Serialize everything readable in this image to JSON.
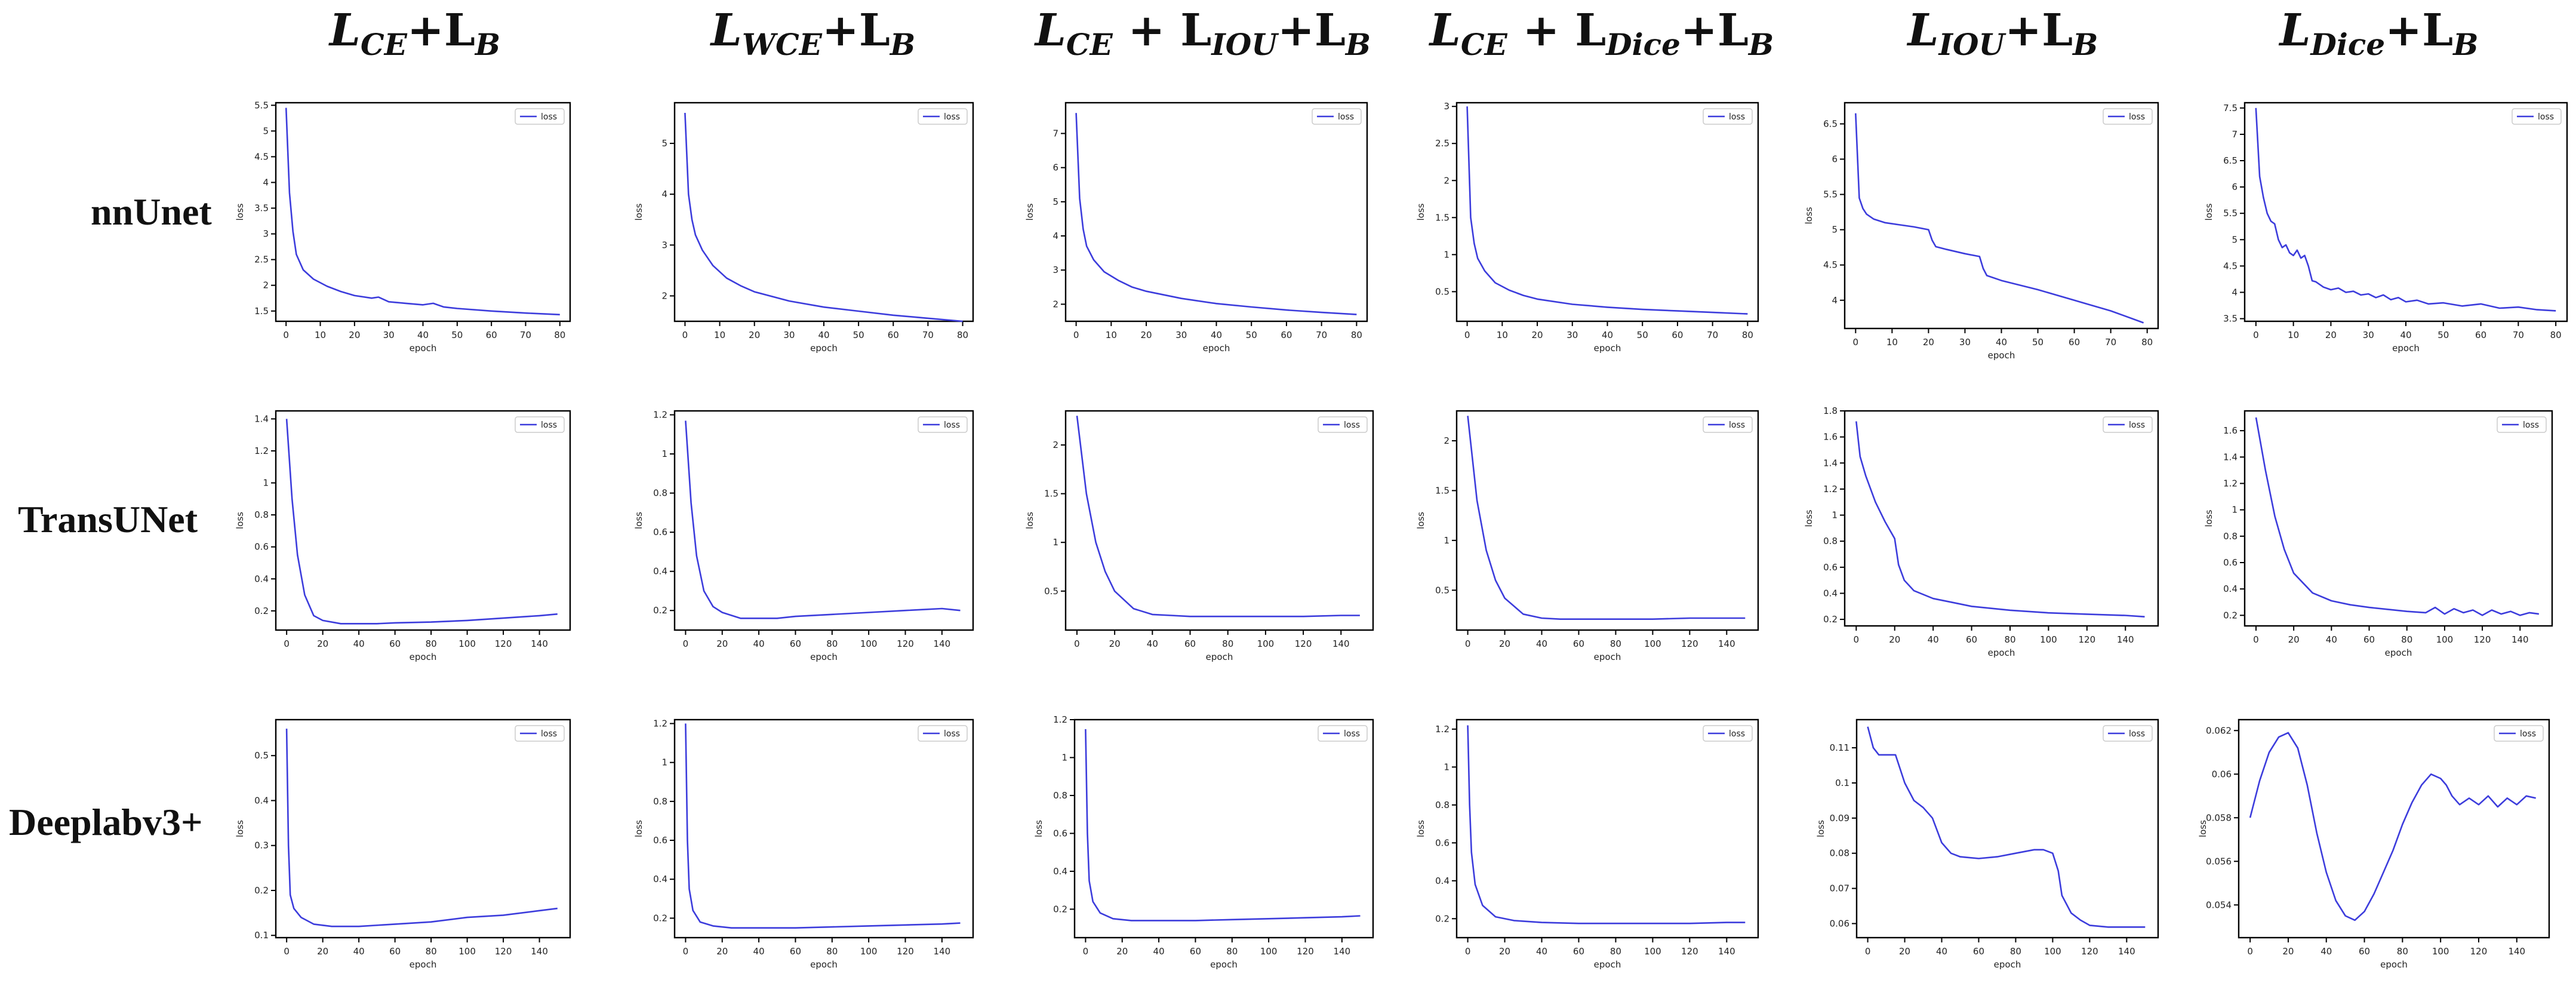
{
  "columns": [
    {
      "base": "L",
      "sub": "CE",
      "rest": "+L",
      "sub2": "B"
    },
    {
      "base": "L",
      "sub": "WCE",
      "rest": "+L",
      "sub2": "B"
    },
    {
      "base": "L",
      "sub": "CE",
      "mid": " + L",
      "midsub": "IOU",
      "rest": "+L",
      "sub2": "B"
    },
    {
      "base": "L",
      "sub": "CE",
      "mid": " + L",
      "midsub": "Dice",
      "rest": "+L",
      "sub2": "B"
    },
    {
      "base": "L",
      "sub": "IOU",
      "rest": "+L",
      "sub2": "B"
    },
    {
      "base": "L",
      "sub": "Dice",
      "rest": "+L",
      "sub2": "B"
    }
  ],
  "rows": [
    "nnUnet",
    "TransUNet",
    "Deeplabv3+"
  ],
  "colors": {
    "line": "#3c3cdc",
    "axis": "#000000",
    "text": "#222222"
  },
  "chart_data": [
    {
      "type": "line",
      "row": 0,
      "col": 0,
      "xlabel": "epoch",
      "ylabel": "loss",
      "legend": "loss",
      "legend_loc": "top-right",
      "xlim": [
        -3,
        83
      ],
      "ylim": [
        1.3,
        5.55
      ],
      "xticks": [
        0,
        10,
        20,
        30,
        40,
        50,
        60,
        70,
        80
      ],
      "yticks": [
        1.5,
        2.0,
        2.5,
        3.0,
        3.5,
        4.0,
        4.5,
        5.0,
        5.5
      ],
      "x": [
        0,
        1,
        2,
        3,
        5,
        8,
        12,
        16,
        20,
        25,
        27,
        30,
        35,
        40,
        43,
        46,
        50,
        60,
        70,
        80
      ],
      "y": [
        5.45,
        3.8,
        3.05,
        2.6,
        2.3,
        2.12,
        1.98,
        1.88,
        1.8,
        1.75,
        1.77,
        1.68,
        1.65,
        1.62,
        1.65,
        1.58,
        1.55,
        1.5,
        1.46,
        1.43
      ]
    },
    {
      "type": "line",
      "row": 0,
      "col": 1,
      "xlabel": "epoch",
      "ylabel": "loss",
      "legend": "loss",
      "legend_loc": "top-right",
      "xlim": [
        -3,
        83
      ],
      "ylim": [
        1.5,
        5.8
      ],
      "xticks": [
        0,
        10,
        20,
        30,
        40,
        50,
        60,
        70,
        80
      ],
      "yticks": [
        2,
        3,
        4,
        5
      ],
      "x": [
        0,
        1,
        2,
        3,
        5,
        8,
        12,
        16,
        20,
        30,
        40,
        50,
        60,
        70,
        80
      ],
      "y": [
        5.6,
        4.0,
        3.5,
        3.2,
        2.9,
        2.6,
        2.35,
        2.2,
        2.08,
        1.9,
        1.78,
        1.7,
        1.62,
        1.56,
        1.5
      ]
    },
    {
      "type": "line",
      "row": 0,
      "col": 2,
      "xlabel": "epoch",
      "ylabel": "loss",
      "legend": "loss",
      "legend_loc": "top-right",
      "xlim": [
        -3,
        83
      ],
      "ylim": [
        1.5,
        7.9
      ],
      "xticks": [
        0,
        10,
        20,
        30,
        40,
        50,
        60,
        70,
        80
      ],
      "yticks": [
        2,
        3,
        4,
        5,
        6,
        7
      ],
      "x": [
        0,
        1,
        2,
        3,
        5,
        8,
        12,
        16,
        20,
        30,
        40,
        50,
        60,
        70,
        80
      ],
      "y": [
        7.6,
        5.1,
        4.2,
        3.7,
        3.3,
        2.95,
        2.7,
        2.5,
        2.38,
        2.17,
        2.02,
        1.92,
        1.83,
        1.76,
        1.7
      ]
    },
    {
      "type": "line",
      "row": 0,
      "col": 3,
      "xlabel": "epoch",
      "ylabel": "loss",
      "legend": "loss",
      "legend_loc": "top-right",
      "xlim": [
        -3,
        83
      ],
      "ylim": [
        0.1,
        3.05
      ],
      "xticks": [
        0,
        10,
        20,
        30,
        40,
        50,
        60,
        70,
        80
      ],
      "yticks": [
        0.5,
        1.0,
        1.5,
        2.0,
        2.5,
        3.0
      ],
      "x": [
        0,
        1,
        2,
        3,
        5,
        8,
        12,
        16,
        20,
        30,
        40,
        50,
        60,
        70,
        80
      ],
      "y": [
        3.0,
        1.5,
        1.15,
        0.95,
        0.78,
        0.62,
        0.52,
        0.45,
        0.4,
        0.33,
        0.29,
        0.26,
        0.24,
        0.22,
        0.2
      ]
    },
    {
      "type": "line",
      "row": 0,
      "col": 4,
      "xlabel": "epoch",
      "ylabel": "loss",
      "legend": "loss",
      "legend_loc": "top-right",
      "xlim": [
        -3,
        83
      ],
      "ylim": [
        3.6,
        6.8
      ],
      "xticks": [
        0,
        10,
        20,
        30,
        40,
        50,
        60,
        70,
        80
      ],
      "yticks": [
        4.0,
        4.5,
        5.0,
        5.5,
        6.0,
        6.5
      ],
      "x": [
        0,
        1,
        2,
        3,
        5,
        8,
        12,
        16,
        20,
        21,
        22,
        25,
        30,
        34,
        35,
        36,
        40,
        50,
        60,
        70,
        79
      ],
      "y": [
        6.65,
        5.45,
        5.3,
        5.22,
        5.15,
        5.1,
        5.07,
        5.04,
        5.0,
        4.85,
        4.76,
        4.72,
        4.66,
        4.62,
        4.45,
        4.35,
        4.28,
        4.15,
        4.0,
        3.85,
        3.68
      ]
    },
    {
      "type": "line",
      "row": 0,
      "col": 5,
      "xlabel": "epoch",
      "ylabel": "loss",
      "legend": "loss",
      "legend_loc": "top-right",
      "xlim": [
        -3,
        83
      ],
      "ylim": [
        3.45,
        7.6
      ],
      "xticks": [
        0,
        10,
        20,
        30,
        40,
        50,
        60,
        70,
        80
      ],
      "yticks": [
        3.5,
        4.0,
        4.5,
        5.0,
        5.5,
        6.0,
        6.5,
        7.0,
        7.5
      ],
      "x": [
        0,
        1,
        2,
        3,
        4,
        5,
        6,
        7,
        8,
        9,
        10,
        11,
        12,
        13,
        14,
        15,
        16,
        17,
        18,
        20,
        22,
        24,
        26,
        28,
        30,
        32,
        34,
        36,
        38,
        40,
        43,
        46,
        50,
        55,
        60,
        65,
        70,
        75,
        80
      ],
      "y": [
        7.5,
        6.2,
        5.8,
        5.5,
        5.35,
        5.3,
        5.0,
        4.85,
        4.9,
        4.75,
        4.7,
        4.8,
        4.65,
        4.7,
        4.5,
        4.22,
        4.2,
        4.15,
        4.1,
        4.05,
        4.08,
        4.0,
        4.02,
        3.95,
        3.97,
        3.9,
        3.95,
        3.86,
        3.9,
        3.82,
        3.85,
        3.78,
        3.8,
        3.74,
        3.78,
        3.7,
        3.72,
        3.67,
        3.65
      ]
    },
    {
      "type": "line",
      "row": 1,
      "col": 0,
      "xlabel": "epoch",
      "ylabel": "loss",
      "legend": "loss",
      "legend_loc": "top-right",
      "xlim": [
        -6,
        157
      ],
      "ylim": [
        0.08,
        1.45
      ],
      "xticks": [
        0,
        20,
        40,
        60,
        80,
        100,
        120,
        140
      ],
      "yticks": [
        0.2,
        0.4,
        0.6,
        0.8,
        1.0,
        1.2,
        1.4
      ],
      "x": [
        0,
        3,
        6,
        10,
        15,
        20,
        30,
        40,
        50,
        60,
        80,
        100,
        120,
        140,
        150
      ],
      "y": [
        1.4,
        0.9,
        0.55,
        0.3,
        0.17,
        0.14,
        0.12,
        0.12,
        0.12,
        0.125,
        0.13,
        0.14,
        0.155,
        0.17,
        0.18
      ]
    },
    {
      "type": "line",
      "row": 1,
      "col": 1,
      "xlabel": "epoch",
      "ylabel": "loss",
      "legend": "loss",
      "legend_loc": "top-right",
      "xlim": [
        -6,
        157
      ],
      "ylim": [
        0.1,
        1.22
      ],
      "xticks": [
        0,
        20,
        40,
        60,
        80,
        100,
        120,
        140
      ],
      "yticks": [
        0.2,
        0.4,
        0.6,
        0.8,
        1.0,
        1.2
      ],
      "x": [
        0,
        3,
        6,
        10,
        15,
        20,
        30,
        40,
        50,
        60,
        80,
        100,
        120,
        140,
        150
      ],
      "y": [
        1.17,
        0.75,
        0.48,
        0.3,
        0.22,
        0.19,
        0.16,
        0.16,
        0.16,
        0.17,
        0.18,
        0.19,
        0.2,
        0.21,
        0.2
      ]
    },
    {
      "type": "line",
      "row": 1,
      "col": 2,
      "xlabel": "epoch",
      "ylabel": "loss",
      "legend": "loss",
      "legend_loc": "top-right",
      "xlim": [
        -6,
        157
      ],
      "ylim": [
        0.1,
        2.35
      ],
      "xticks": [
        0,
        20,
        40,
        60,
        80,
        100,
        120,
        140
      ],
      "yticks": [
        0.5,
        1.0,
        1.5,
        2.0
      ],
      "x": [
        0,
        5,
        10,
        15,
        20,
        30,
        40,
        50,
        60,
        80,
        100,
        120,
        140,
        150
      ],
      "y": [
        2.3,
        1.5,
        1.0,
        0.7,
        0.5,
        0.32,
        0.26,
        0.25,
        0.24,
        0.24,
        0.24,
        0.24,
        0.25,
        0.25
      ]
    },
    {
      "type": "line",
      "row": 1,
      "col": 3,
      "xlabel": "epoch",
      "ylabel": "loss",
      "legend": "loss",
      "legend_loc": "top-right",
      "xlim": [
        -6,
        157
      ],
      "ylim": [
        0.1,
        2.3
      ],
      "xticks": [
        0,
        20,
        40,
        60,
        80,
        100,
        120,
        140
      ],
      "yticks": [
        0.5,
        1.0,
        1.5,
        2.0
      ],
      "x": [
        0,
        5,
        10,
        15,
        20,
        30,
        40,
        50,
        60,
        80,
        100,
        120,
        140,
        150
      ],
      "y": [
        2.25,
        1.4,
        0.9,
        0.6,
        0.42,
        0.26,
        0.22,
        0.21,
        0.21,
        0.21,
        0.21,
        0.22,
        0.22,
        0.22
      ]
    },
    {
      "type": "line",
      "row": 1,
      "col": 4,
      "xlabel": "epoch",
      "ylabel": "loss",
      "legend": "loss",
      "legend_loc": "top-right",
      "xlim": [
        -6,
        157
      ],
      "ylim": [
        0.15,
        1.8
      ],
      "xticks": [
        0,
        20,
        40,
        60,
        80,
        100,
        120,
        140
      ],
      "yticks": [
        0.2,
        0.4,
        0.6,
        0.8,
        1.0,
        1.2,
        1.4,
        1.6,
        1.8
      ],
      "x": [
        0,
        2,
        5,
        10,
        15,
        20,
        22,
        25,
        30,
        40,
        50,
        60,
        80,
        100,
        120,
        140,
        150
      ],
      "y": [
        1.72,
        1.45,
        1.3,
        1.1,
        0.95,
        0.82,
        0.62,
        0.5,
        0.42,
        0.36,
        0.33,
        0.3,
        0.27,
        0.25,
        0.24,
        0.23,
        0.22
      ]
    },
    {
      "type": "line",
      "row": 1,
      "col": 5,
      "xlabel": "epoch",
      "ylabel": "loss",
      "legend": "loss",
      "legend_loc": "top-right",
      "xlim": [
        -6,
        157
      ],
      "ylim": [
        0.12,
        1.75
      ],
      "xticks": [
        0,
        20,
        40,
        60,
        80,
        100,
        120,
        140
      ],
      "yticks": [
        0.2,
        0.4,
        0.6,
        0.8,
        1.0,
        1.2,
        1.4,
        1.6
      ],
      "x": [
        0,
        5,
        10,
        15,
        20,
        30,
        40,
        50,
        60,
        80,
        90,
        95,
        100,
        105,
        110,
        115,
        120,
        125,
        130,
        135,
        140,
        145,
        150
      ],
      "y": [
        1.7,
        1.3,
        0.95,
        0.7,
        0.52,
        0.37,
        0.31,
        0.28,
        0.26,
        0.23,
        0.22,
        0.26,
        0.21,
        0.25,
        0.22,
        0.24,
        0.2,
        0.24,
        0.21,
        0.23,
        0.2,
        0.22,
        0.21
      ]
    },
    {
      "type": "line",
      "row": 2,
      "col": 0,
      "xlabel": "epoch",
      "ylabel": "loss",
      "legend": "loss",
      "legend_loc": "top-right",
      "xlim": [
        -6,
        157
      ],
      "ylim": [
        0.095,
        0.58
      ],
      "xticks": [
        0,
        20,
        40,
        60,
        80,
        100,
        120,
        140
      ],
      "yticks": [
        0.1,
        0.2,
        0.3,
        0.4,
        0.5
      ],
      "x": [
        0,
        1,
        2,
        4,
        8,
        15,
        25,
        40,
        60,
        80,
        100,
        120,
        140,
        150
      ],
      "y": [
        0.56,
        0.3,
        0.19,
        0.16,
        0.14,
        0.125,
        0.12,
        0.12,
        0.125,
        0.13,
        0.14,
        0.145,
        0.155,
        0.16
      ]
    },
    {
      "type": "line",
      "row": 2,
      "col": 1,
      "xlabel": "epoch",
      "ylabel": "loss",
      "legend": "loss",
      "legend_loc": "top-right",
      "xlim": [
        -6,
        157
      ],
      "ylim": [
        0.1,
        1.22
      ],
      "xticks": [
        0,
        20,
        40,
        60,
        80,
        100,
        120,
        140
      ],
      "yticks": [
        0.2,
        0.4,
        0.6,
        0.8,
        1.0,
        1.2
      ],
      "x": [
        0,
        1,
        2,
        4,
        8,
        15,
        25,
        40,
        60,
        80,
        100,
        120,
        140,
        150
      ],
      "y": [
        1.2,
        0.6,
        0.35,
        0.24,
        0.18,
        0.16,
        0.15,
        0.15,
        0.15,
        0.155,
        0.16,
        0.165,
        0.17,
        0.175
      ]
    },
    {
      "type": "line",
      "row": 2,
      "col": 2,
      "xlabel": "epoch",
      "ylabel": "loss",
      "legend": "loss",
      "legend_loc": "top-right",
      "xlim": [
        -6,
        157
      ],
      "ylim": [
        0.05,
        1.2
      ],
      "xticks": [
        0,
        20,
        40,
        60,
        80,
        100,
        120,
        140
      ],
      "yticks": [
        0.2,
        0.4,
        0.6,
        0.8,
        1.0,
        1.2
      ],
      "x": [
        0,
        1,
        2,
        4,
        8,
        15,
        25,
        40,
        60,
        80,
        100,
        120,
        140,
        150
      ],
      "y": [
        1.15,
        0.6,
        0.35,
        0.24,
        0.18,
        0.15,
        0.14,
        0.14,
        0.14,
        0.145,
        0.15,
        0.155,
        0.16,
        0.165
      ]
    },
    {
      "type": "line",
      "row": 2,
      "col": 3,
      "xlabel": "epoch",
      "ylabel": "loss",
      "legend": "loss",
      "legend_loc": "top-right",
      "xlim": [
        -6,
        157
      ],
      "ylim": [
        0.1,
        1.25
      ],
      "xticks": [
        0,
        20,
        40,
        60,
        80,
        100,
        120,
        140
      ],
      "yticks": [
        0.2,
        0.4,
        0.6,
        0.8,
        1.0,
        1.2
      ],
      "x": [
        0,
        1,
        2,
        4,
        8,
        15,
        25,
        40,
        60,
        80,
        100,
        120,
        140,
        150
      ],
      "y": [
        1.22,
        0.8,
        0.55,
        0.38,
        0.27,
        0.21,
        0.19,
        0.18,
        0.175,
        0.175,
        0.175,
        0.175,
        0.18,
        0.18
      ]
    },
    {
      "type": "line",
      "row": 2,
      "col": 4,
      "xlabel": "epoch",
      "ylabel": "loss",
      "legend": "loss",
      "legend_loc": "top-right",
      "xlim": [
        -6,
        157
      ],
      "ylim": [
        0.056,
        0.118
      ],
      "xticks": [
        0,
        20,
        40,
        60,
        80,
        100,
        120,
        140
      ],
      "yticks": [
        0.06,
        0.07,
        0.08,
        0.09,
        0.1,
        0.11
      ],
      "x": [
        0,
        3,
        6,
        10,
        15,
        20,
        25,
        30,
        35,
        40,
        45,
        50,
        60,
        70,
        80,
        90,
        95,
        100,
        103,
        105,
        110,
        115,
        120,
        130,
        140,
        150
      ],
      "y": [
        0.116,
        0.11,
        0.108,
        0.108,
        0.108,
        0.1,
        0.095,
        0.093,
        0.09,
        0.083,
        0.08,
        0.079,
        0.0785,
        0.079,
        0.08,
        0.081,
        0.081,
        0.08,
        0.075,
        0.068,
        0.063,
        0.061,
        0.0595,
        0.059,
        0.059,
        0.059
      ]
    },
    {
      "type": "line",
      "row": 2,
      "col": 5,
      "xlabel": "epoch",
      "ylabel": "loss",
      "legend": "loss",
      "legend_loc": "top-right",
      "xlim": [
        -6,
        157
      ],
      "ylim": [
        0.0525,
        0.0625
      ],
      "xticks": [
        0,
        20,
        40,
        60,
        80,
        100,
        120,
        140
      ],
      "yticks": [
        0.054,
        0.056,
        0.058,
        0.06,
        0.062
      ],
      "x": [
        0,
        5,
        10,
        15,
        20,
        25,
        30,
        35,
        40,
        45,
        50,
        55,
        60,
        65,
        70,
        75,
        80,
        85,
        90,
        95,
        100,
        103,
        106,
        110,
        115,
        120,
        125,
        130,
        135,
        140,
        145,
        150
      ],
      "y": [
        0.058,
        0.0597,
        0.061,
        0.0617,
        0.0619,
        0.0612,
        0.0595,
        0.0573,
        0.0555,
        0.0542,
        0.0535,
        0.0533,
        0.0537,
        0.0545,
        0.0555,
        0.0565,
        0.0577,
        0.0587,
        0.0595,
        0.06,
        0.0598,
        0.0595,
        0.059,
        0.0586,
        0.0589,
        0.0586,
        0.059,
        0.0585,
        0.0589,
        0.0586,
        0.059,
        0.0589
      ]
    }
  ]
}
